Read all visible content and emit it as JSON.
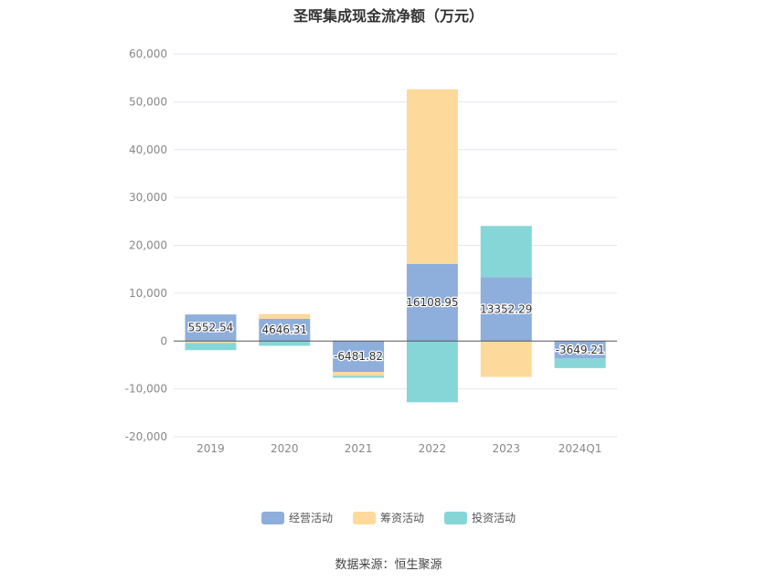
{
  "chart_data": {
    "type": "bar",
    "stacked": true,
    "title": "圣晖集成现金流净额（万元）",
    "xlabel": "",
    "ylabel": "",
    "categories": [
      "2019",
      "2020",
      "2021",
      "2022",
      "2023",
      "2024Q1"
    ],
    "ylim": [
      -20000,
      60000
    ],
    "yticks": [
      -20000,
      -10000,
      0,
      10000,
      20000,
      30000,
      40000,
      50000,
      60000
    ],
    "ytick_labels": [
      "-20,000",
      "-10,000",
      "0",
      "10,000",
      "20,000",
      "30,000",
      "40,000",
      "50,000",
      "60,000"
    ],
    "grid": true,
    "legend_position": "bottom",
    "series": [
      {
        "name": "经营活动",
        "color": "#8eaedc",
        "values": [
          5552.54,
          4646.31,
          -6481.82,
          16108.95,
          13352.29,
          -3649.21
        ],
        "data_labels": [
          "5552.54",
          "4646.31",
          "-6481.82",
          "16108.95",
          "13352.29",
          "-3649.21"
        ]
      },
      {
        "name": "筹资活动",
        "color": "#fdd99b",
        "values": [
          -400,
          1000,
          -800,
          36500,
          -7500,
          0
        ]
      },
      {
        "name": "投资活动",
        "color": "#86d6d8",
        "values": [
          -1500,
          -1000,
          -400,
          -12800,
          10700,
          -2000
        ]
      }
    ]
  },
  "source_note": "数据来源：恒生聚源"
}
